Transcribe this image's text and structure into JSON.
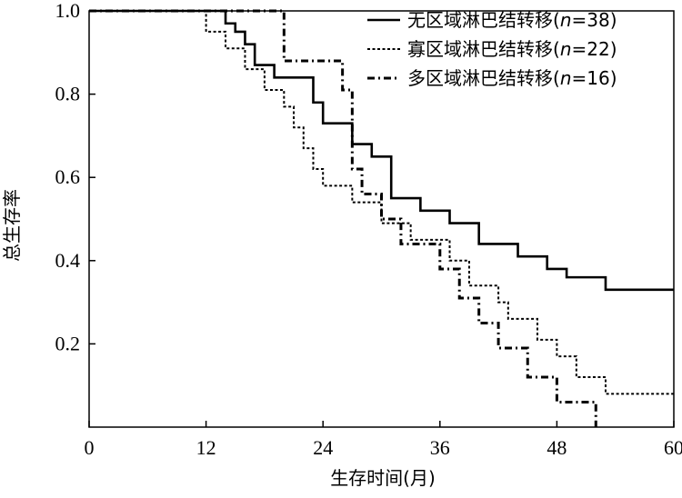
{
  "chart_data": {
    "type": "line",
    "subtype": "kaplan-meier",
    "title": "",
    "xlabel": "生存时间(月)",
    "ylabel": "总生存率",
    "xlim": [
      0,
      60
    ],
    "ylim": [
      0,
      1.0
    ],
    "xticks": [
      0,
      12,
      24,
      36,
      48,
      60
    ],
    "xtick_labels": [
      "0",
      "12",
      "24",
      "36",
      "48",
      "60"
    ],
    "yticks": [
      0.2,
      0.4,
      0.6,
      0.8,
      1.0
    ],
    "ytick_labels": [
      "0.2",
      "0.4",
      "0.6",
      "0.8",
      "1.0"
    ],
    "grid": false,
    "legend_position": "top-right",
    "series": [
      {
        "name_prefix": "无区域淋巴结转移(",
        "name_var": "n",
        "name_suffix": "=38)",
        "line_style": "solid",
        "x": [
          0,
          11,
          14,
          15,
          16,
          17,
          19,
          22,
          23,
          24,
          27,
          29,
          31,
          34,
          37,
          40,
          44,
          47,
          49,
          53,
          60
        ],
        "y": [
          1.0,
          1.0,
          0.97,
          0.95,
          0.92,
          0.87,
          0.84,
          0.84,
          0.78,
          0.73,
          0.68,
          0.65,
          0.55,
          0.52,
          0.49,
          0.44,
          0.41,
          0.38,
          0.36,
          0.33,
          0.33
        ]
      },
      {
        "name_prefix": "寡区域淋巴结转移(",
        "name_var": "n",
        "name_suffix": "=22)",
        "line_style": "dotted",
        "x": [
          0,
          11,
          12,
          14,
          16,
          18,
          20,
          21,
          22,
          23,
          24,
          27,
          30,
          33,
          37,
          39,
          42,
          43,
          46,
          48,
          50,
          53,
          60
        ],
        "y": [
          1.0,
          1.0,
          0.95,
          0.91,
          0.86,
          0.81,
          0.77,
          0.72,
          0.67,
          0.62,
          0.58,
          0.54,
          0.49,
          0.45,
          0.4,
          0.34,
          0.3,
          0.26,
          0.21,
          0.17,
          0.12,
          0.08,
          0.08
        ]
      },
      {
        "name_prefix": "多区域淋巴结转移(",
        "name_var": "n",
        "name_suffix": "=16)",
        "line_style": "dashdot",
        "x": [
          0,
          16,
          20,
          26,
          27,
          28,
          30,
          32,
          36,
          38,
          40,
          42,
          45,
          48,
          52
        ],
        "y": [
          1.0,
          1.0,
          0.88,
          0.81,
          0.62,
          0.56,
          0.5,
          0.44,
          0.38,
          0.31,
          0.25,
          0.19,
          0.12,
          0.06,
          0.0
        ]
      }
    ]
  }
}
